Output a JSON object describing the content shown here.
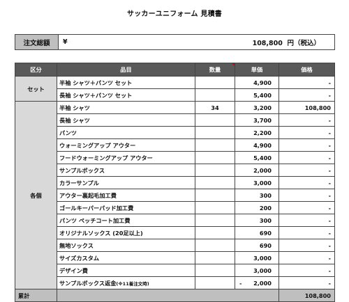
{
  "document": {
    "title": "サッカーユニフォーム 見積書"
  },
  "total": {
    "label": "注文総額",
    "currency": "¥",
    "amount": "108,800",
    "suffix": "円（税込）"
  },
  "table": {
    "headers": {
      "category": "区分",
      "item": "品目",
      "qty": "数量",
      "unit_price": "単価",
      "price": "価格"
    },
    "set_group": {
      "category": "セット",
      "rows": [
        {
          "item": "半袖 シャツ＋パンツ セット",
          "qty": "",
          "unit_price": "4,900",
          "price": "-"
        },
        {
          "item": "長袖 シャツ＋パンツ セット",
          "qty": "",
          "unit_price": "5,400",
          "price": "-"
        }
      ]
    },
    "each_group": {
      "category": "各個",
      "rows": [
        {
          "item": "半袖 シャツ",
          "qty": "34",
          "unit_price": "3,200",
          "price": "108,800"
        },
        {
          "item": "長袖 シャツ",
          "qty": "",
          "unit_price": "3,700",
          "price": "-"
        },
        {
          "item": "パンツ",
          "qty": "",
          "unit_price": "2,200",
          "price": "-"
        },
        {
          "item": "ウォーミングアップ アウター",
          "qty": "",
          "unit_price": "4,900",
          "price": "-"
        },
        {
          "item": "フードウォーミングアップ アウター",
          "qty": "",
          "unit_price": "5,400",
          "price": "-"
        },
        {
          "item": "サンプルボックス",
          "qty": "",
          "unit_price": "2,000",
          "price": "-"
        },
        {
          "item": "カラーサンプル",
          "qty": "",
          "unit_price": "3,000",
          "price": "-"
        },
        {
          "item": "アウター裏起毛加工費",
          "qty": "",
          "unit_price": "300",
          "price": "-"
        },
        {
          "item": "ゴールキーパーパッド加工費",
          "qty": "",
          "unit_price": "200",
          "price": "-"
        },
        {
          "item": "パンツ ペッチコート加工費",
          "qty": "",
          "unit_price": "300",
          "price": "-"
        },
        {
          "item": "オリジナルソックス (20足以上)",
          "qty": "",
          "unit_price": "690",
          "price": "-"
        },
        {
          "item": "無地ソックス",
          "qty": "",
          "unit_price": "690",
          "price": "-"
        },
        {
          "item": "サイズカスタム",
          "qty": "",
          "unit_price": "3,000",
          "price": "-"
        },
        {
          "item": "デザイン費",
          "qty": "",
          "unit_price": "3,000",
          "price": "-"
        }
      ],
      "refund_row": {
        "item_main": "サンプルボックス返金",
        "item_note": "(※11着注文時)",
        "qty": "",
        "unit_price_sign": "-",
        "unit_price": "2,000",
        "price": "-"
      }
    },
    "sum_row": {
      "label": "累計",
      "price": "108,800"
    }
  }
}
